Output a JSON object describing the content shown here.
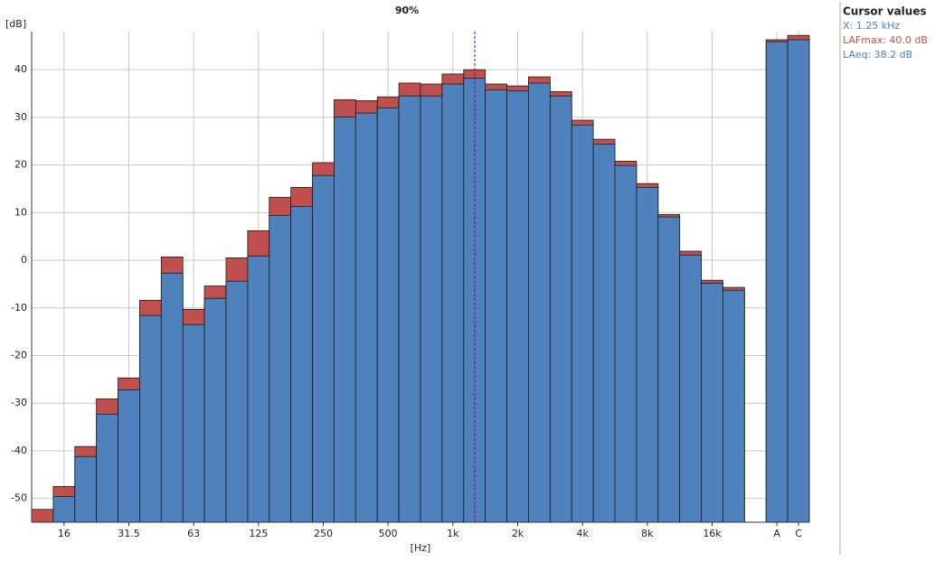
{
  "chart_data": {
    "type": "bar",
    "title": "90%",
    "y_label": "[dB]",
    "x_label": "[Hz]",
    "categories": [
      null,
      "16",
      null,
      null,
      "31.5",
      null,
      null,
      "63",
      null,
      null,
      "125",
      null,
      null,
      "250",
      null,
      null,
      "500",
      null,
      null,
      "1k",
      null,
      null,
      "2k",
      null,
      null,
      "4k",
      null,
      null,
      "8k",
      null,
      null,
      "16k",
      null,
      null,
      "A",
      "C"
    ],
    "series": [
      {
        "color": "#c0504d",
        "values": [
          -52.3,
          -47.5,
          -39.1,
          -29.1,
          -24.7,
          -8.4,
          0.7,
          -10.3,
          -5.4,
          0.5,
          6.2,
          13.2,
          15.3,
          20.5,
          33.7,
          33.5,
          34.3,
          37.2,
          37.0,
          39.1,
          40.0,
          37.0,
          36.6,
          38.5,
          35.4,
          29.4,
          25.4,
          20.8,
          16.1,
          9.6,
          1.9,
          -4.2,
          -5.7,
          null,
          46.3,
          47.2
        ]
      },
      {
        "color": "#4f81bd",
        "values": [
          -55,
          -49.6,
          -41.2,
          -32.3,
          -27.2,
          -11.6,
          -2.7,
          -13.5,
          -8.0,
          -4.4,
          0.9,
          9.4,
          11.3,
          17.8,
          30.1,
          30.9,
          32.0,
          34.5,
          34.5,
          37.0,
          38.2,
          35.8,
          35.6,
          37.2,
          34.5,
          28.4,
          24.4,
          19.9,
          15.3,
          9.1,
          1.1,
          -4.8,
          -6.3,
          null,
          45.9,
          46.3
        ]
      }
    ],
    "ylim": [
      -55,
      48
    ],
    "yticks": [
      -50,
      -40,
      -30,
      -20,
      -10,
      0,
      10,
      20,
      30,
      40
    ],
    "grid": true,
    "cursor": {
      "title": "Cursor values",
      "lines": [
        {
          "text": "X: 1.25 kHz",
          "color": "#4f81bd"
        },
        {
          "text": "LAFmax: 40.0 dB",
          "color": "#c0504d"
        },
        {
          "text": "LAeq: 38.2 dB",
          "color": "#4f81bd"
        }
      ]
    }
  }
}
